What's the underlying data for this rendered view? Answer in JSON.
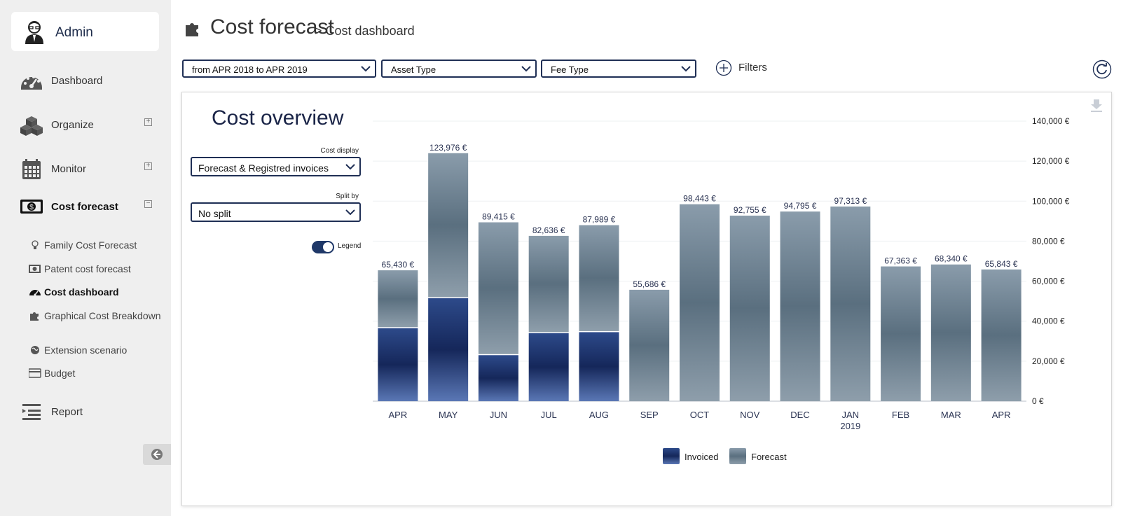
{
  "user": {
    "name": "Admin"
  },
  "sidebar": {
    "items": [
      {
        "label": "Dashboard",
        "icon": "speedometer-icon"
      },
      {
        "label": "Organize",
        "icon": "cubes-icon",
        "toggle": "⊞"
      },
      {
        "label": "Monitor",
        "icon": "calendar-icon",
        "toggle": "⊞"
      },
      {
        "label": "Cost forecast",
        "icon": "banknote-icon",
        "toggle": "⊟"
      },
      {
        "label": "Report",
        "icon": "list-icon"
      }
    ],
    "sub_items": [
      {
        "label": "Family Cost Forecast",
        "icon": "lightbulb-icon"
      },
      {
        "label": "Patent cost forecast",
        "icon": "banknote-icon"
      },
      {
        "label": "Cost dashboard",
        "icon": "speedometer-icon"
      },
      {
        "label": "Graphical Cost Breakdown",
        "icon": "puzzle-icon"
      },
      {
        "label": "Extension scenario",
        "icon": "globe-icon"
      },
      {
        "label": "Budget",
        "icon": "credit-card-icon"
      }
    ]
  },
  "header": {
    "title": "Cost forecast",
    "breadcrumb": "> Cost dashboard"
  },
  "filters": {
    "period": "from APR 2018 to APR 2019",
    "asset_type": "Asset Type",
    "fee_type": "Fee Type",
    "filters_label": "Filters"
  },
  "card": {
    "title": "Cost overview",
    "cost_display_label": "Cost display",
    "cost_display_value": "Forecast & Registred invoices",
    "split_by_label": "Split by",
    "split_by_value": "No split",
    "legend_toggle_label": "Legend",
    "legend_toggle_on": true
  },
  "colors": {
    "invoiced": "#1f3768",
    "forecast": "#6f8593",
    "accent": "#1f2f55"
  },
  "chart_data": {
    "type": "bar",
    "stacked": true,
    "categories": [
      "APR",
      "MAY",
      "JUN",
      "JUL",
      "AUG",
      "SEP",
      "OCT",
      "NOV",
      "DEC",
      "JAN 2019",
      "FEB",
      "MAR",
      "APR"
    ],
    "category_lines": [
      [
        "APR"
      ],
      [
        "MAY"
      ],
      [
        "JUN"
      ],
      [
        "JUL"
      ],
      [
        "AUG"
      ],
      [
        "SEP"
      ],
      [
        "OCT"
      ],
      [
        "NOV"
      ],
      [
        "DEC"
      ],
      [
        "JAN",
        "2019"
      ],
      [
        "FEB"
      ],
      [
        "MAR"
      ],
      [
        "APR"
      ]
    ],
    "series": [
      {
        "name": "Invoiced",
        "values": [
          36500,
          51500,
          23000,
          34000,
          34500,
          0,
          0,
          0,
          0,
          0,
          0,
          0,
          0
        ]
      },
      {
        "name": "Forecast",
        "values": [
          28930,
          72476,
          66415,
          48636,
          53489,
          55686,
          98443,
          92755,
          94795,
          97313,
          67363,
          68340,
          65843
        ]
      }
    ],
    "totals": [
      65430,
      123976,
      89415,
      82636,
      87989,
      55686,
      98443,
      92755,
      94795,
      97313,
      67363,
      68340,
      65843
    ],
    "total_labels": [
      "65,430 €",
      "123,976 €",
      "89,415 €",
      "82,636 €",
      "87,989 €",
      "55,686 €",
      "98,443 €",
      "92,755 €",
      "94,795 €",
      "97,313 €",
      "67,363 €",
      "68,340 €",
      "65,843 €"
    ],
    "y_ticks": [
      0,
      20000,
      40000,
      60000,
      80000,
      100000,
      120000,
      140000
    ],
    "y_tick_labels": [
      "0 €",
      "20,000 €",
      "40,000 €",
      "60,000 €",
      "80,000 €",
      "100,000 €",
      "120,000 €",
      "140,000 €"
    ],
    "ylim": [
      0,
      140000
    ],
    "y_axis_side": "right",
    "grid": true,
    "legend": {
      "position": "bottom-center",
      "entries": [
        "Invoiced",
        "Forecast"
      ]
    }
  }
}
